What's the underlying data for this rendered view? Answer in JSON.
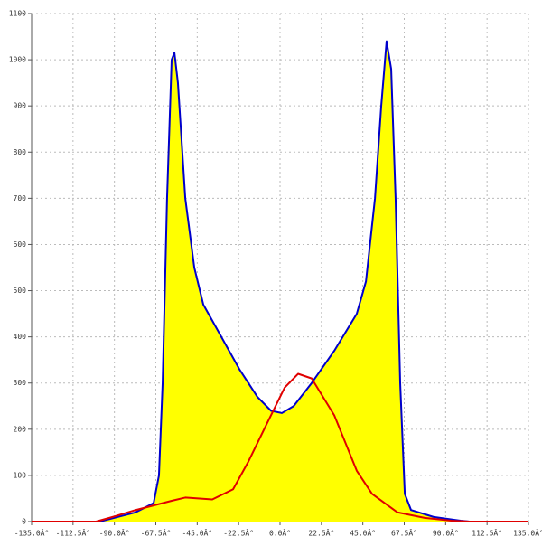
{
  "chart_data": {
    "type": "area",
    "xlim": [
      -135,
      135
    ],
    "ylim": [
      0,
      1100
    ],
    "xticks": [
      {
        "value": -135,
        "label": "-135.0Â°"
      },
      {
        "value": -112.5,
        "label": "-112.5Â°"
      },
      {
        "value": -90,
        "label": "-90.0Â°"
      },
      {
        "value": -67.5,
        "label": "-67.5Â°"
      },
      {
        "value": -45,
        "label": "-45.0Â°"
      },
      {
        "value": -22.5,
        "label": "-22.5Â°"
      },
      {
        "value": 0,
        "label": "0.0Â°"
      },
      {
        "value": 22.5,
        "label": "22.5Â°"
      },
      {
        "value": 45,
        "label": "45.0Â°"
      },
      {
        "value": 67.5,
        "label": "67.5Â°"
      },
      {
        "value": 90,
        "label": "90.0Â°"
      },
      {
        "value": 112.5,
        "label": "112.5Â°"
      },
      {
        "value": 135,
        "label": "135.0Â°"
      }
    ],
    "yticks": [
      0,
      100,
      200,
      300,
      400,
      500,
      600,
      700,
      800,
      900,
      1000,
      1100
    ],
    "grid": true,
    "series": [
      {
        "color": "#0000cc",
        "fill": "#ffff00",
        "x": [
          -135,
          -98,
          -78.5,
          -68.7,
          -65.8,
          -63.8,
          -61.4,
          -58.9,
          -57.4,
          -55.5,
          -51.5,
          -46.6,
          -41.7,
          -31.9,
          -22.1,
          -12.3,
          -4.9,
          1,
          7.4,
          17.2,
          29.5,
          41.7,
          46.7,
          51.6,
          55,
          57.9,
          60.4,
          62.8,
          65.3,
          67.8,
          71.2,
          83.5,
          98.2,
          103,
          135
        ],
        "values": [
          0,
          0,
          20,
          40,
          100,
          300,
          700,
          1000,
          1015,
          950,
          700,
          550,
          470,
          400,
          330,
          270,
          240,
          235,
          250,
          300,
          370,
          450,
          520,
          700,
          900,
          1040,
          980,
          700,
          300,
          60,
          25,
          10,
          2,
          0,
          0
        ]
      },
      {
        "color": "#e00000",
        "x": [
          -135,
          -100,
          -91,
          -78.5,
          -68.7,
          -58.9,
          -51.5,
          -36.8,
          -25.5,
          -17.2,
          -7.4,
          2.5,
          9.8,
          17.2,
          29.5,
          41.7,
          50,
          63.8,
          78.6,
          93,
          103,
          135
        ],
        "values": [
          0,
          0,
          10,
          25,
          35,
          45,
          52,
          48,
          70,
          130,
          210,
          290,
          320,
          310,
          230,
          110,
          60,
          20,
          8,
          2,
          0,
          0
        ]
      }
    ]
  }
}
